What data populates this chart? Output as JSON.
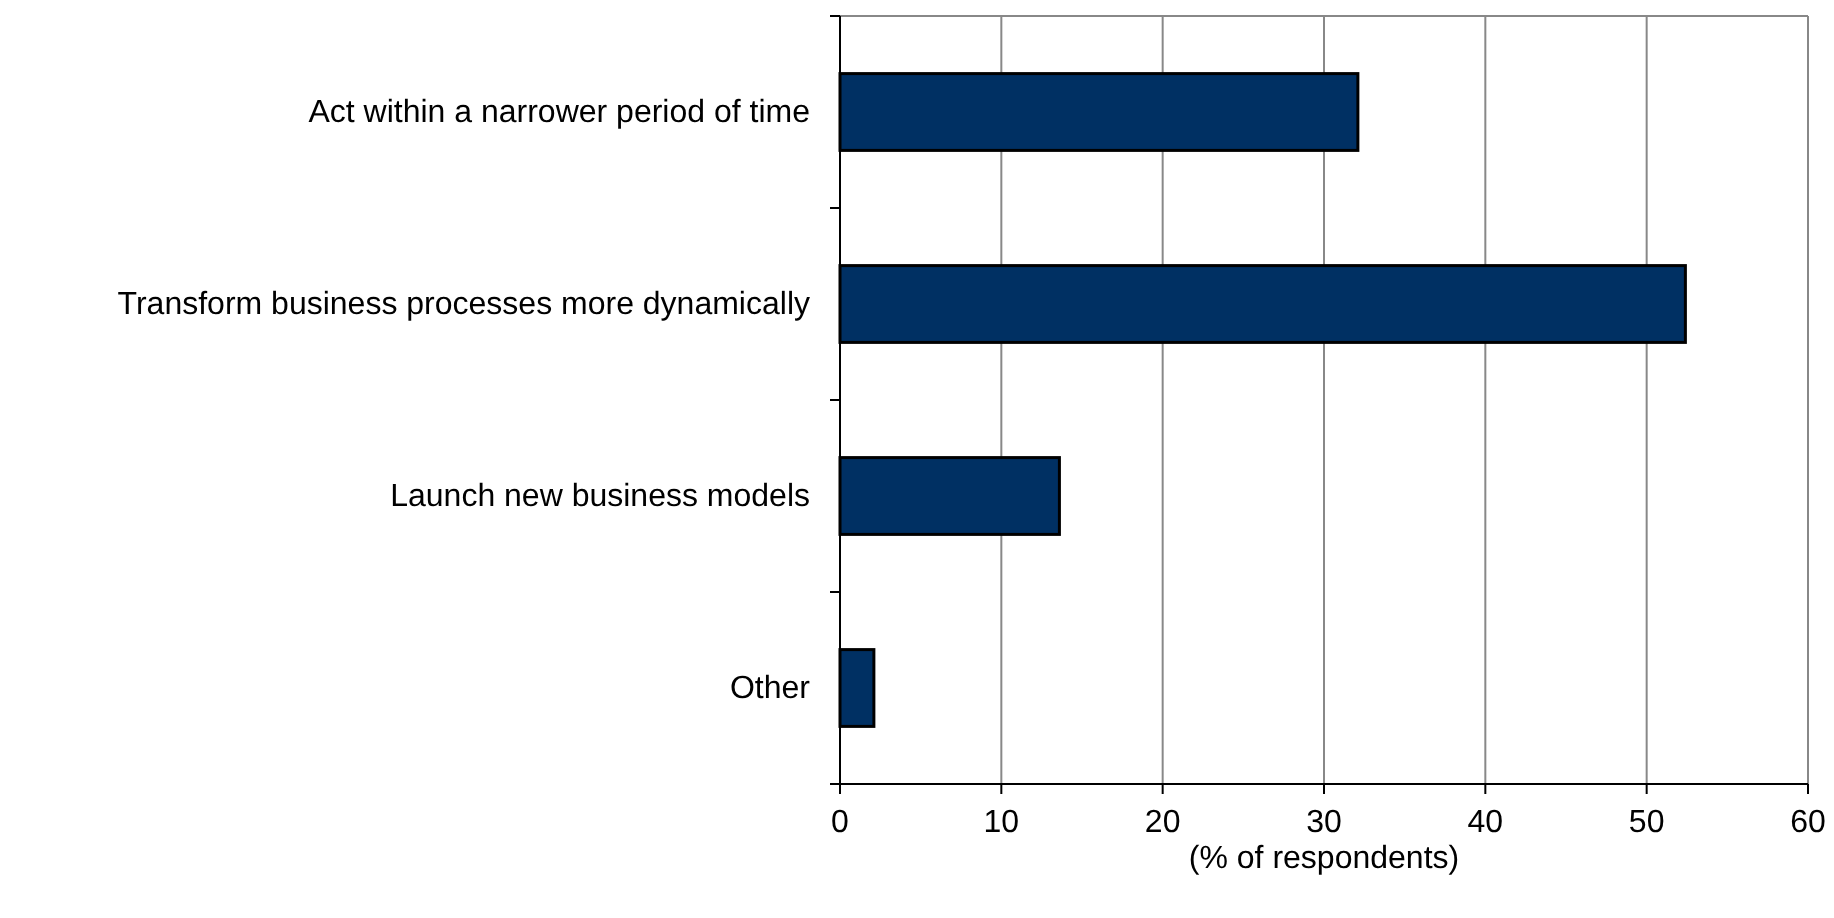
{
  "chart_data": {
    "type": "bar",
    "orientation": "horizontal",
    "xlabel": "(% of respondents)",
    "categories": [
      "Act within a narrower period of time",
      "Transform business processes more dynamically",
      "Launch new business models",
      "Other"
    ],
    "values": [
      32.1,
      52.4,
      13.6,
      2.1
    ],
    "color": "#003063",
    "xlim": [
      0,
      60
    ],
    "xticks": [
      0,
      10,
      20,
      30,
      40,
      50,
      60
    ],
    "grid": "x"
  }
}
